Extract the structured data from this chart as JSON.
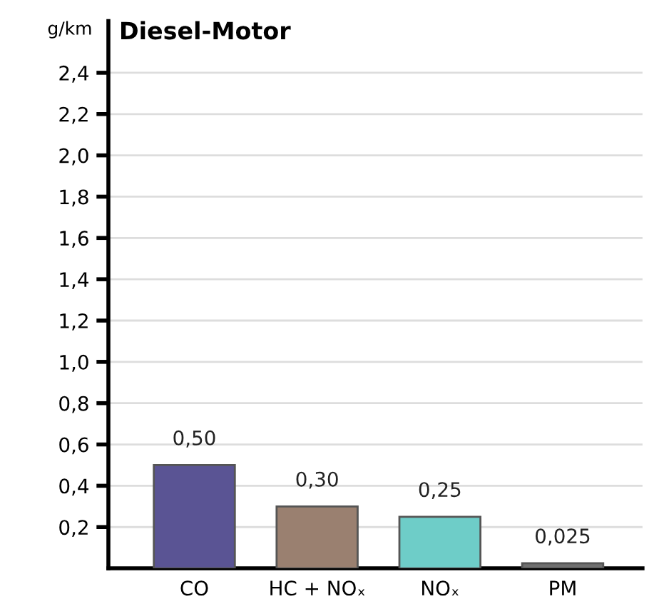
{
  "chart_data": {
    "type": "bar",
    "title": "Diesel-Motor",
    "ylabel": "g/km",
    "categories": [
      "CO",
      "HC + NOₓ",
      "NOₓ",
      "PM"
    ],
    "values": [
      0.5,
      0.3,
      0.25,
      0.025
    ],
    "value_labels": [
      "0,50",
      "0,30",
      "0,25",
      "0,025"
    ],
    "colors": [
      "#5a5494",
      "#9a8070",
      "#6ecdc8",
      "#707070"
    ],
    "ylim": [
      0,
      2.65
    ],
    "yticks": [
      {
        "value": 0.2,
        "label": "0,2"
      },
      {
        "value": 0.4,
        "label": "0,4"
      },
      {
        "value": 0.6,
        "label": "0,6"
      },
      {
        "value": 0.8,
        "label": "0,8"
      },
      {
        "value": 1.0,
        "label": "1,0"
      },
      {
        "value": 1.2,
        "label": "1,2"
      },
      {
        "value": 1.4,
        "label": "1,4"
      },
      {
        "value": 1.6,
        "label": "1,6"
      },
      {
        "value": 1.8,
        "label": "1,8"
      },
      {
        "value": 2.0,
        "label": "2,0"
      },
      {
        "value": 2.2,
        "label": "2,2"
      },
      {
        "value": 2.4,
        "label": "2,4"
      }
    ],
    "grid": "y",
    "legend": false
  }
}
